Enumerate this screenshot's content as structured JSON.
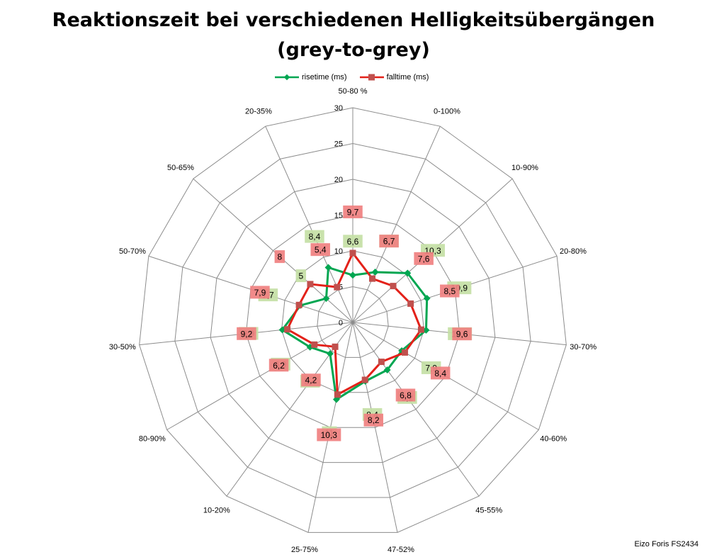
{
  "chart_data": {
    "type": "radar",
    "title_lines": [
      "Reaktionszeit bei verschiedenen Helligkeitsübergängen",
      "(grey-to-grey)"
    ],
    "categories": [
      "50-80 %",
      "0-100%",
      "10-90%",
      "20-80%",
      "30-70%",
      "40-60%",
      "45-55%",
      "47-52%",
      "25-75%",
      "10-20%",
      "80-90%",
      "30-50%",
      "50-70%",
      "50-65%",
      "20-35%"
    ],
    "radial_axis": {
      "min": 0,
      "max": 30,
      "ticks": [
        0,
        5,
        10,
        15,
        20,
        25,
        30
      ]
    },
    "legend_position": "top",
    "series": [
      {
        "name": "risetime (ms)",
        "color": "#00a651",
        "label_bg": "#c4e0a5",
        "values": [
          6.6,
          7.7,
          10.3,
          10.9,
          10.3,
          7.9,
          8.2,
          8.4,
          11,
          5.4,
          6.9,
          9.9,
          7.7,
          5,
          8.4
        ],
        "labels": [
          "6,6",
          "7,7",
          "10,3",
          "10,9",
          "10,3",
          "7,9",
          "8,2",
          "8,4",
          "11",
          "5,4",
          "6,9",
          "9,9",
          "7,7",
          "5",
          "8,4"
        ]
      },
      {
        "name": "falltime (ms)",
        "color": "#e32119",
        "label_bg": "#f08080",
        "values": [
          9.7,
          6.7,
          7.6,
          8.5,
          9.6,
          8.4,
          6.8,
          8.2,
          10.3,
          4.2,
          6.2,
          9.2,
          7.9,
          8,
          5.4
        ],
        "labels": [
          "9,7",
          "6,7",
          "7,6",
          "8,5",
          "9,6",
          "8,4",
          "6,8",
          "8,2",
          "10,3",
          "4,2",
          "6,2",
          "9,2",
          "7,9",
          "8",
          "5,4"
        ]
      }
    ]
  },
  "footer": {
    "source_note": "Eizo Foris FS2434"
  }
}
